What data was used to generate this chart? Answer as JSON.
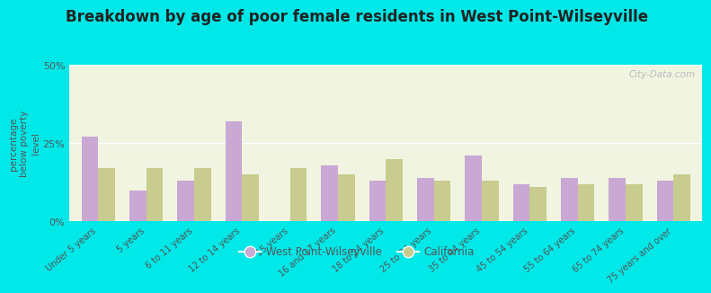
{
  "title": "Breakdown by age of poor female residents in West Point-Wilseyville",
  "ylabel": "percentage\nbelow poverty\nlevel",
  "categories": [
    "Under 5 years",
    "5 years",
    "6 to 11 years",
    "12 to 14 years",
    "15 years",
    "16 and 17 years",
    "18 to 24 years",
    "25 to 34 years",
    "35 to 44 years",
    "45 to 54 years",
    "55 to 64 years",
    "65 to 74 years",
    "75 years and over"
  ],
  "wpw_values": [
    27.0,
    10.0,
    13.0,
    32.0,
    0.0,
    18.0,
    13.0,
    14.0,
    21.0,
    12.0,
    14.0,
    14.0,
    13.0
  ],
  "ca_values": [
    17.0,
    17.0,
    17.0,
    15.0,
    17.0,
    15.0,
    20.0,
    13.0,
    13.0,
    11.0,
    12.0,
    12.0,
    15.0
  ],
  "wpw_color": "#c9a8d4",
  "ca_color": "#c8cc8e",
  "bg_plot_top": "#f0f4e0",
  "bg_plot_bottom": "#e0edd0",
  "bg_outer": "#00e8e8",
  "ylim": [
    0,
    50
  ],
  "yticks": [
    0,
    25,
    50
  ],
  "ytick_labels": [
    "0%",
    "25%",
    "50%"
  ],
  "title_fontsize": 12,
  "legend_label_wpw": "West Point-Wilseyville",
  "legend_label_ca": "California",
  "bar_width": 0.35
}
